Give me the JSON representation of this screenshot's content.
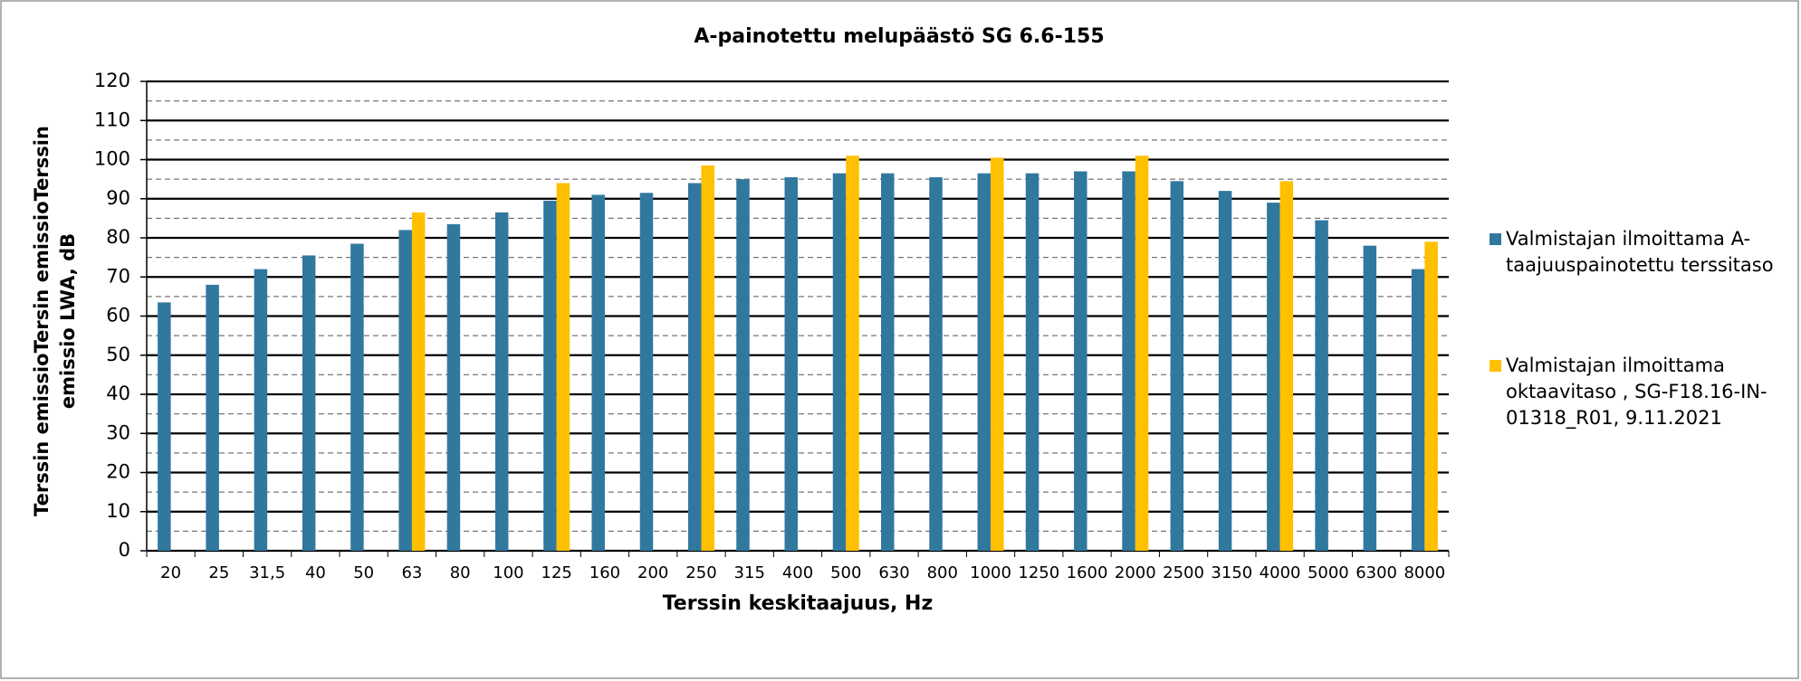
{
  "chart_data": {
    "type": "bar",
    "title": "A-painotettu melupäästö SG 6.6-155",
    "x_label": "Terssin keskitaajuus, Hz",
    "y_label": [
      "Terssin emissioTersin emissioTerssin",
      "emissio LWA, dB"
    ],
    "categories": [
      "20",
      "25",
      "31,5",
      "40",
      "50",
      "63",
      "80",
      "100",
      "125",
      "160",
      "200",
      "250",
      "315",
      "400",
      "500",
      "630",
      "800",
      "1000",
      "1250",
      "1600",
      "2000",
      "2500",
      "3150",
      "4000",
      "5000",
      "6300",
      "8000"
    ],
    "series": [
      {
        "name": "Valmistajan ilmoittama A-taajuuspainotettu terssitaso",
        "color": "#31789e",
        "values": [
          63.5,
          68,
          72,
          75.5,
          78.5,
          82,
          83.5,
          86.5,
          89.5,
          91,
          91.5,
          94,
          95,
          95.5,
          96.5,
          96.5,
          95.5,
          96.5,
          96.5,
          97,
          97,
          94.5,
          92,
          89,
          84.5,
          78,
          72
        ]
      },
      {
        "name": "Valmistajan ilmoittama oktaavitaso , SG-F18.16-IN-01318_R01, 9.11.2021",
        "color": "#ffc000",
        "values": [
          null,
          null,
          null,
          null,
          null,
          86.5,
          null,
          null,
          94,
          null,
          null,
          98.5,
          null,
          null,
          101,
          null,
          null,
          100.5,
          null,
          null,
          101,
          null,
          null,
          94.5,
          null,
          null,
          79
        ]
      }
    ],
    "ylim": [
      0,
      120
    ],
    "yticks": [
      0,
      10,
      20,
      30,
      40,
      50,
      60,
      70,
      80,
      90,
      100,
      110,
      120
    ],
    "minor_yticks": [
      5,
      15,
      25,
      35,
      45,
      55,
      65,
      75,
      85,
      95,
      105,
      115
    ],
    "grid": true,
    "legend": "right"
  }
}
